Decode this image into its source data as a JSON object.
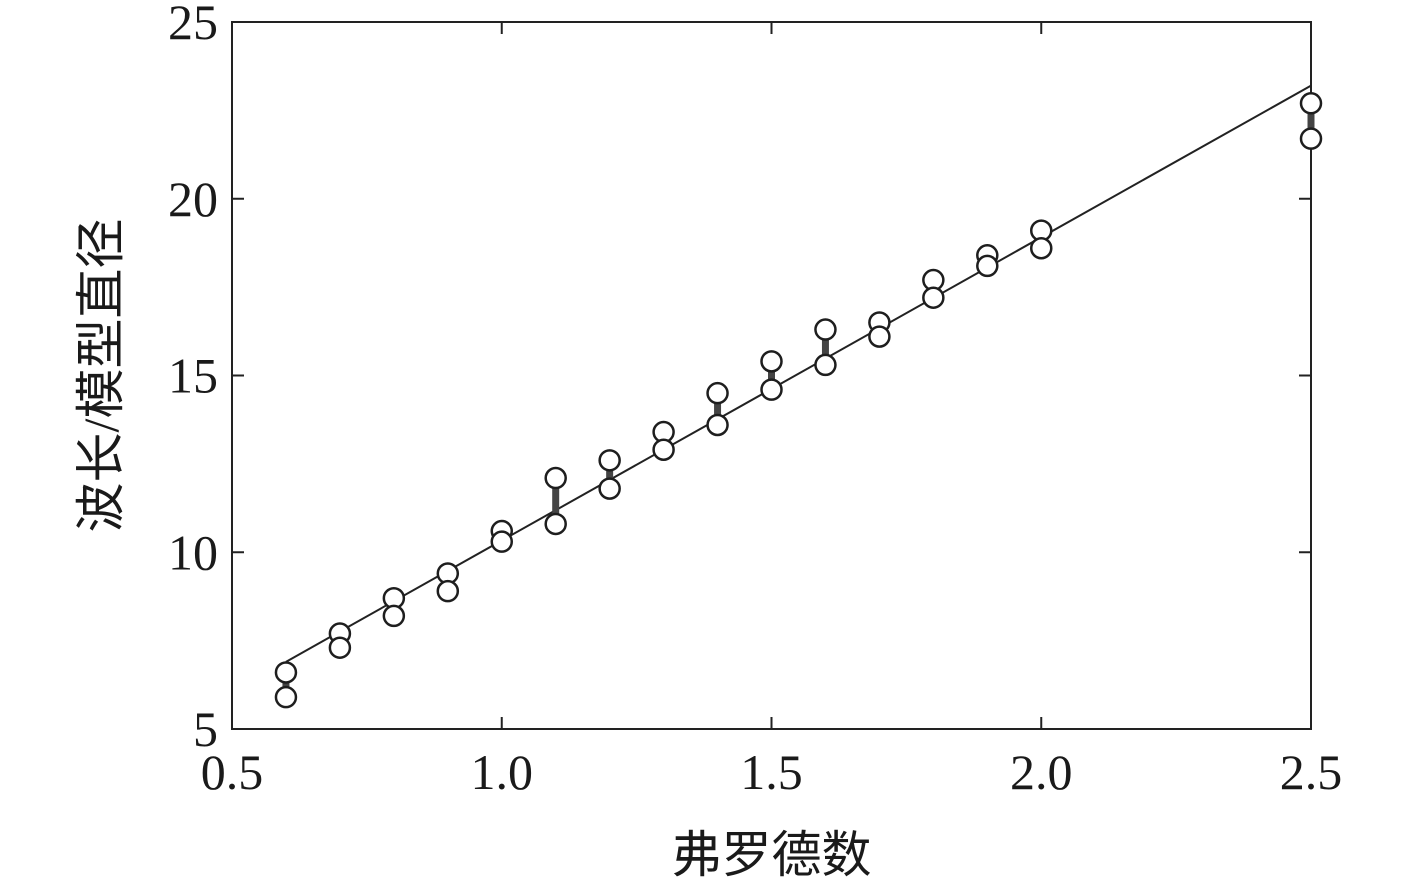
{
  "chart_data": {
    "type": "scatter",
    "title": "",
    "xlabel": "弗罗德数",
    "ylabel": "波长/模型直径",
    "xlim": [
      0.5,
      2.5
    ],
    "ylim": [
      5,
      25
    ],
    "xticks": [
      0.5,
      1.0,
      1.5,
      2.0,
      2.5
    ],
    "xtick_labels": [
      "0.5",
      "1.0",
      "1.5",
      "2.0",
      "2.5"
    ],
    "yticks": [
      5,
      10,
      15,
      20,
      25
    ],
    "ytick_labels": [
      "5",
      "10",
      "15",
      "20",
      "25"
    ],
    "grid": false,
    "legend": "none",
    "marker": "open-circle",
    "points": [
      {
        "x": 0.6,
        "y_high": 6.6,
        "y_low": 5.9
      },
      {
        "x": 0.7,
        "y_high": 7.7,
        "y_low": 7.3
      },
      {
        "x": 0.8,
        "y_high": 8.7,
        "y_low": 8.2
      },
      {
        "x": 0.9,
        "y_high": 9.4,
        "y_low": 8.9
      },
      {
        "x": 1.0,
        "y_high": 10.6,
        "y_low": 10.3
      },
      {
        "x": 1.1,
        "y_high": 12.1,
        "y_low": 10.8
      },
      {
        "x": 1.2,
        "y_high": 12.6,
        "y_low": 11.8
      },
      {
        "x": 1.3,
        "y_high": 13.4,
        "y_low": 12.9
      },
      {
        "x": 1.4,
        "y_high": 14.5,
        "y_low": 13.6
      },
      {
        "x": 1.5,
        "y_high": 15.4,
        "y_low": 14.6
      },
      {
        "x": 1.6,
        "y_high": 16.3,
        "y_low": 15.3
      },
      {
        "x": 1.7,
        "y_high": 16.5,
        "y_low": 16.1
      },
      {
        "x": 1.8,
        "y_high": 17.7,
        "y_low": 17.2
      },
      {
        "x": 1.9,
        "y_high": 18.4,
        "y_low": 18.1
      },
      {
        "x": 2.0,
        "y_high": 19.1,
        "y_low": 18.6
      },
      {
        "x": 2.5,
        "y_high": 22.7,
        "y_low": 21.7
      }
    ],
    "fit_line": {
      "x": [
        0.6,
        2.5
      ],
      "y": [
        6.9,
        23.2
      ]
    }
  }
}
